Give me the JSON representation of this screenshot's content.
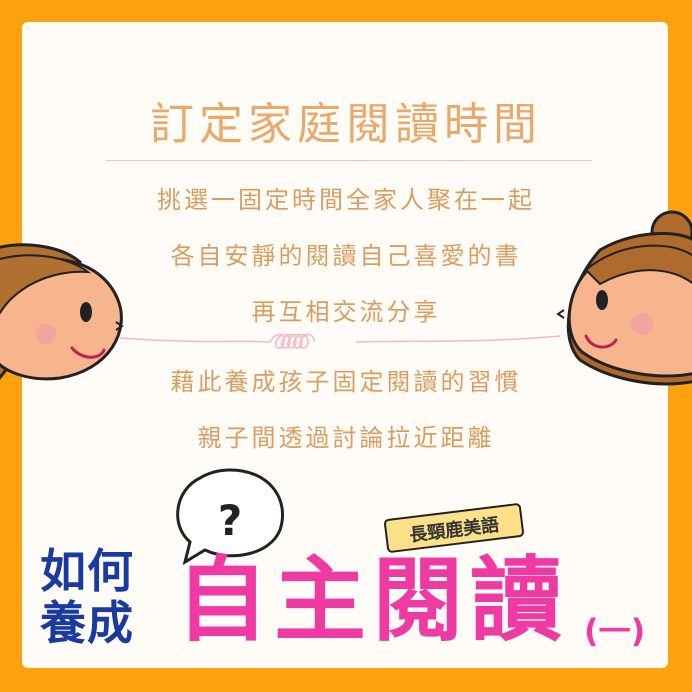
{
  "title": "訂定家庭閱讀時間",
  "lines": [
    "挑選一固定時間全家人聚在一起",
    "各自安靜的閱讀自己喜愛的書",
    "再互相交流分享",
    "藉此養成孩子固定閱讀的習慣",
    "親子間透過討論拉近距離"
  ],
  "badge": "長頸鹿美語",
  "banner": {
    "line1": "如何",
    "line2": "養成",
    "big": "自主閱讀",
    "part": "(一)"
  },
  "colors": {
    "frame": "#fda20f",
    "card": "#fffcf8",
    "text": "#d99d60",
    "navy": "#1b3aa0",
    "pink": "#f03aa3"
  }
}
